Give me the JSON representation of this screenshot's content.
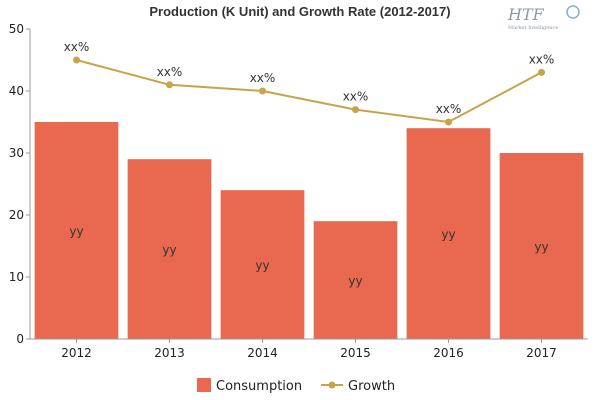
{
  "chart_data": {
    "title": "Production (K Unit) and Growth Rate (2012-2017)",
    "categories": [
      "2012",
      "2013",
      "2014",
      "2015",
      "2016",
      "2017"
    ],
    "series": [
      {
        "name": "Consumption",
        "type": "bar",
        "values": [
          35,
          29,
          24,
          19,
          34,
          30
        ],
        "labels": [
          "yy",
          "yy",
          "yy",
          "yy",
          "yy",
          "yy"
        ],
        "color": "#e8694f"
      },
      {
        "name": "Growth",
        "type": "line",
        "values": [
          45,
          41,
          40,
          37,
          35,
          43
        ],
        "labels": [
          "xx%",
          "xx%",
          "xx%",
          "xx%",
          "xx%",
          "xx%"
        ],
        "color": "#c9a24a"
      }
    ],
    "ylim": [
      0,
      50
    ],
    "yticks": [
      "0",
      "10",
      "20",
      "30",
      "40",
      "50"
    ],
    "grid": false,
    "legend_position": "bottom-center"
  },
  "logo": {
    "text": "HTF",
    "subtitle": "Market Intelligence"
  }
}
